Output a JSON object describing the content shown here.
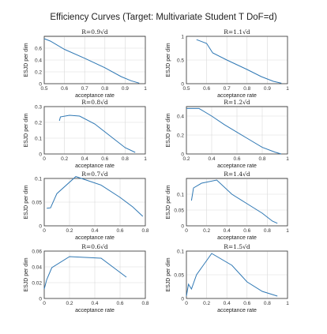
{
  "page": {
    "suptitle": "Efficiency Curves (Target: Multivariate Student T DoF=d)"
  },
  "colors": {
    "line": "#2f78b4",
    "grid": "#d9d9d9",
    "axes": "#333333"
  },
  "chart_data": [
    {
      "type": "line",
      "title": "R=0.9√d",
      "xlabel": "acceptance rate",
      "ylabel": "ESJD per dim",
      "xlim": [
        0.5,
        1
      ],
      "ylim": [
        0,
        0.8
      ],
      "xticks": [
        0.5,
        0.6,
        0.7,
        0.8,
        0.9,
        1
      ],
      "yticks": [
        0,
        0.2,
        0.4,
        0.6
      ],
      "x": [
        0.5,
        0.53,
        0.6,
        0.7,
        0.8,
        0.88,
        0.93,
        0.97
      ],
      "y": [
        0.76,
        0.72,
        0.58,
        0.43,
        0.27,
        0.12,
        0.05,
        0.01
      ],
      "grid": true
    },
    {
      "type": "line",
      "title": "R=1.1√d",
      "xlabel": "acceptance rate",
      "ylabel": "ESJD per dim",
      "xlim": [
        0.5,
        1
      ],
      "ylim": [
        0,
        1
      ],
      "xticks": [
        0.5,
        0.6,
        0.7,
        0.8,
        0.9,
        1
      ],
      "yticks": [
        0,
        0.5,
        1
      ],
      "x": [
        0.55,
        0.6,
        0.63,
        0.7,
        0.8,
        0.87,
        0.93,
        0.97
      ],
      "y": [
        0.93,
        0.85,
        0.65,
        0.5,
        0.3,
        0.15,
        0.05,
        0.01
      ],
      "grid": true
    },
    {
      "type": "line",
      "title": "R=0.8√d",
      "xlabel": "acceptance rate",
      "ylabel": "ESJD per dim",
      "xlim": [
        0,
        1
      ],
      "ylim": [
        0,
        0.3
      ],
      "xticks": [
        0,
        0.2,
        0.4,
        0.6,
        0.8,
        1
      ],
      "yticks": [
        0,
        0.1,
        0.2,
        0.3
      ],
      "x": [
        0.15,
        0.16,
        0.25,
        0.35,
        0.5,
        0.6,
        0.7,
        0.8,
        0.9
      ],
      "y": [
        0.21,
        0.235,
        0.245,
        0.24,
        0.19,
        0.14,
        0.09,
        0.04,
        0.01
      ],
      "grid": true
    },
    {
      "type": "line",
      "title": "R=1.2√d",
      "xlabel": "acceptance rate",
      "ylabel": "ESJD per dim",
      "xlim": [
        0.2,
        1
      ],
      "ylim": [
        0,
        0.5
      ],
      "xticks": [
        0.2,
        0.4,
        0.6,
        0.8,
        1
      ],
      "yticks": [
        0,
        0.2,
        0.4
      ],
      "x": [
        0.2,
        0.3,
        0.4,
        0.5,
        0.6,
        0.7,
        0.8,
        0.9,
        0.95
      ],
      "y": [
        0.48,
        0.48,
        0.4,
        0.31,
        0.23,
        0.15,
        0.07,
        0.02,
        0.0
      ],
      "grid": true
    },
    {
      "type": "line",
      "title": "R=0.7√d",
      "xlabel": "acceptance rate",
      "ylabel": "ESJD per dim",
      "xlim": [
        0,
        0.8
      ],
      "ylim": [
        0,
        0.1
      ],
      "xticks": [
        0,
        0.2,
        0.4,
        0.6,
        0.8
      ],
      "yticks": [
        0,
        0.05,
        0.1
      ],
      "x": [
        0.02,
        0.05,
        0.1,
        0.25,
        0.45,
        0.6,
        0.7,
        0.78
      ],
      "y": [
        0.037,
        0.038,
        0.068,
        0.104,
        0.086,
        0.06,
        0.04,
        0.02
      ],
      "grid": true
    },
    {
      "type": "line",
      "title": "R=1.4√d",
      "xlabel": "acceptance rate",
      "ylabel": "ESJD per dim",
      "xlim": [
        0,
        1
      ],
      "ylim": [
        0,
        0.15
      ],
      "xticks": [
        0,
        0.2,
        0.4,
        0.6,
        0.8,
        1
      ],
      "yticks": [
        0,
        0.05,
        0.1
      ],
      "x": [
        0.05,
        0.07,
        0.15,
        0.3,
        0.45,
        0.6,
        0.75,
        0.85,
        0.9
      ],
      "y": [
        0.08,
        0.12,
        0.135,
        0.145,
        0.1,
        0.07,
        0.04,
        0.015,
        0.008
      ],
      "grid": true
    },
    {
      "type": "line",
      "title": "R=0.6√d",
      "xlabel": "acceptance rate",
      "ylabel": "ESJD per dim",
      "xlim": [
        0,
        0.8
      ],
      "ylim": [
        0,
        0.06
      ],
      "xticks": [
        0,
        0.2,
        0.4,
        0.6,
        0.8
      ],
      "yticks": [
        0,
        0.02,
        0.04,
        0.06
      ],
      "x": [
        0.0,
        0.02,
        0.06,
        0.2,
        0.45,
        0.65
      ],
      "y": [
        0.012,
        0.024,
        0.039,
        0.053,
        0.051,
        0.027
      ],
      "grid": true
    },
    {
      "type": "line",
      "title": "R=1.5√d",
      "xlabel": "acceptance rate",
      "ylabel": "ESJD per dim",
      "xlim": [
        0,
        1
      ],
      "ylim": [
        0,
        0.1
      ],
      "xticks": [
        0,
        0.2,
        0.4,
        0.6,
        0.8,
        1
      ],
      "yticks": [
        0,
        0.05,
        0.1
      ],
      "x": [
        0.0,
        0.02,
        0.05,
        0.1,
        0.25,
        0.45,
        0.6,
        0.75,
        0.9
      ],
      "y": [
        0.005,
        0.03,
        0.02,
        0.05,
        0.095,
        0.07,
        0.035,
        0.015,
        0.005
      ],
      "grid": true
    }
  ]
}
